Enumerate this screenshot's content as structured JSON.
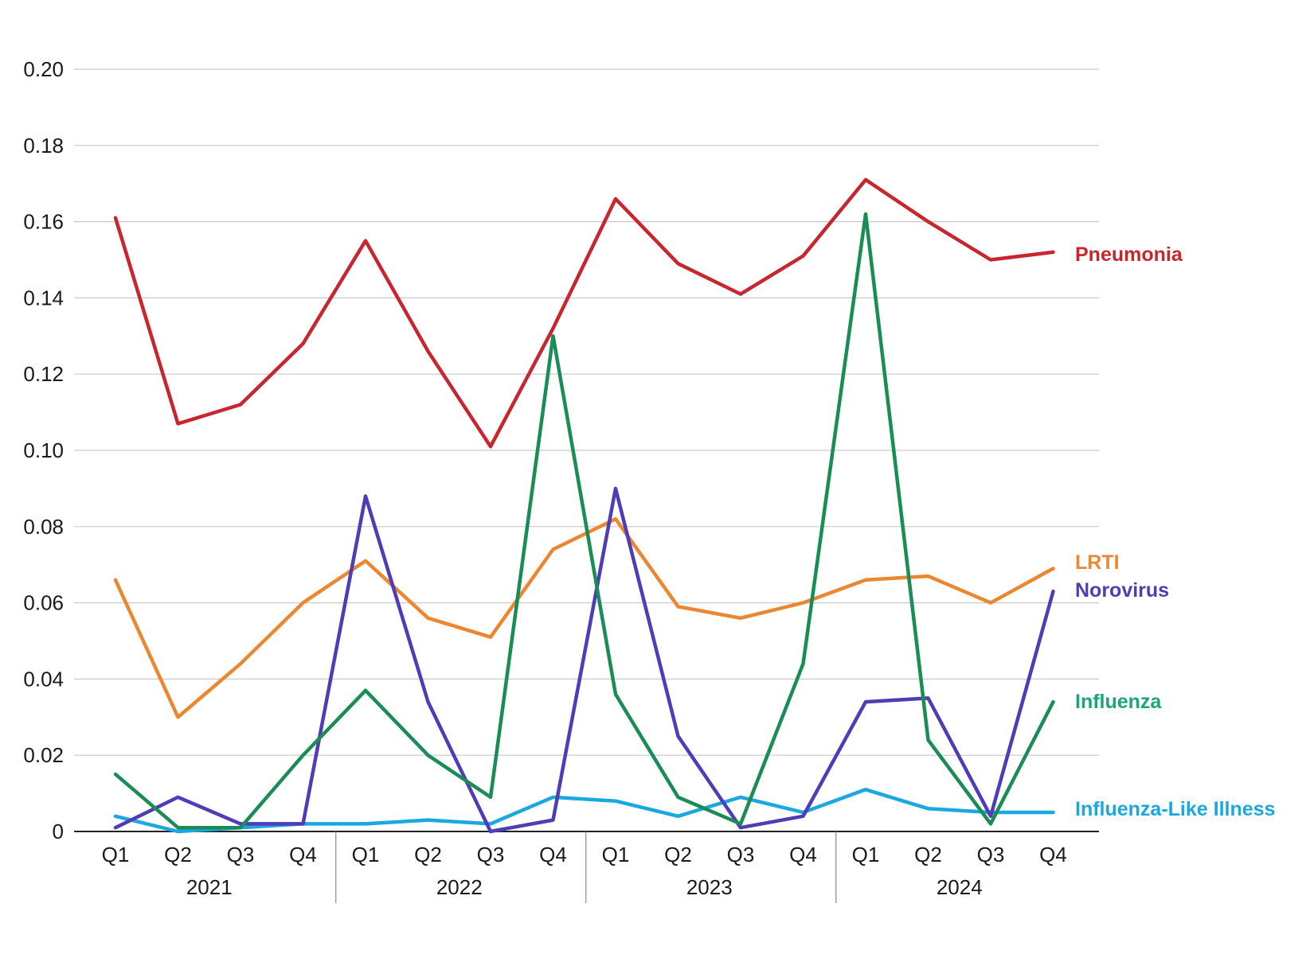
{
  "chart_data": {
    "type": "line",
    "title": "",
    "xlabel": "",
    "ylabel": "",
    "ylim": [
      0,
      0.2
    ],
    "y_ticks": [
      "0",
      "0.02",
      "0.04",
      "0.06",
      "0.08",
      "0.10",
      "0.12",
      "0.14",
      "0.16",
      "0.18",
      "0.20"
    ],
    "y_tick_values": [
      0,
      0.02,
      0.04,
      0.06,
      0.08,
      0.1,
      0.12,
      0.14,
      0.16,
      0.18,
      0.2
    ],
    "grid": "horizontal",
    "legend": "labels at right end of each line",
    "x": [
      "2021 Q1",
      "2021 Q2",
      "2021 Q3",
      "2021 Q4",
      "2022 Q1",
      "2022 Q2",
      "2022 Q3",
      "2022 Q4",
      "2023 Q1",
      "2023 Q2",
      "2023 Q3",
      "2023 Q4",
      "2024 Q1",
      "2024 Q2",
      "2024 Q3",
      "2024 Q4"
    ],
    "quarter_labels": [
      "Q1",
      "Q2",
      "Q3",
      "Q4",
      "Q1",
      "Q2",
      "Q3",
      "Q4",
      "Q1",
      "Q2",
      "Q3",
      "Q4",
      "Q1",
      "Q2",
      "Q3",
      "Q4"
    ],
    "year_labels": [
      "2021",
      "2022",
      "2023",
      "2024"
    ],
    "series": [
      {
        "name": "Pneumonia",
        "color": "#c8262f",
        "values": [
          0.161,
          0.107,
          0.112,
          0.128,
          0.155,
          0.126,
          0.101,
          0.132,
          0.166,
          0.149,
          0.141,
          0.151,
          0.171,
          0.16,
          0.15,
          0.152
        ]
      },
      {
        "name": "LRTI",
        "color": "#ec8731",
        "values": [
          0.066,
          0.03,
          0.044,
          0.06,
          0.071,
          0.056,
          0.051,
          0.074,
          0.082,
          0.059,
          0.056,
          0.06,
          0.066,
          0.067,
          0.06,
          0.069
        ]
      },
      {
        "name": "Norovirus",
        "color": "#4f3db8",
        "values": [
          0.001,
          0.009,
          0.002,
          0.002,
          0.088,
          0.034,
          0.0,
          0.003,
          0.09,
          0.025,
          0.001,
          0.004,
          0.034,
          0.035,
          0.004,
          0.063
        ]
      },
      {
        "name": "Influenza",
        "color": "#1a8c55",
        "values": [
          0.015,
          0.001,
          0.001,
          0.02,
          0.037,
          0.02,
          0.009,
          0.13,
          0.036,
          0.009,
          0.002,
          0.044,
          0.162,
          0.024,
          0.002,
          0.034
        ]
      },
      {
        "name": "Influenza-Like Illness",
        "color": "#1ba7e0",
        "values": [
          0.004,
          0.0,
          0.001,
          0.002,
          0.002,
          0.003,
          0.002,
          0.009,
          0.008,
          0.004,
          0.009,
          0.005,
          0.011,
          0.006,
          0.005,
          0.005
        ]
      }
    ],
    "label_colors": {
      "Pneumonia": "#c8262f",
      "LRTI": "#ec8731",
      "Norovirus": "#4f3db8",
      "Influenza": "#1aa57a",
      "Influenza-Like Illness": "#1ba7e0"
    }
  }
}
